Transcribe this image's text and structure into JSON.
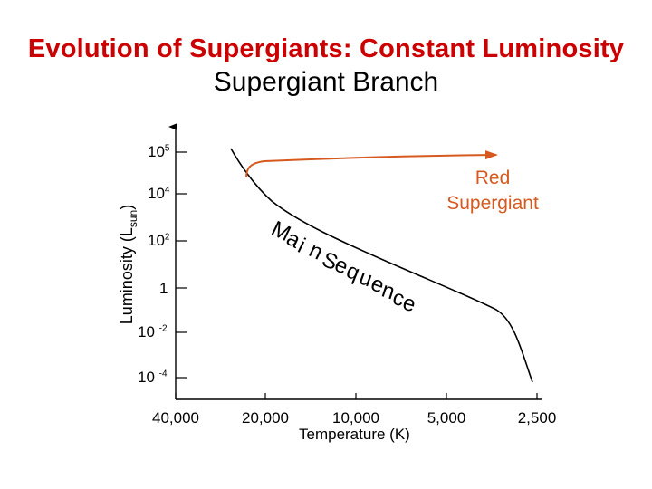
{
  "title": "Evolution of Supergiants: Constant Luminosity",
  "subtitle": "Supergiant Branch",
  "axes": {
    "y_label_main": "Luminosity (L",
    "y_label_sub": "sun",
    "y_label_close": ")",
    "x_label": "Temperature (K)",
    "y_ticks": [
      {
        "base": "10",
        "exp": "5"
      },
      {
        "base": "10",
        "exp": "4"
      },
      {
        "base": "10",
        "exp": "2"
      },
      {
        "base": "1",
        "exp": ""
      },
      {
        "base": "10 ",
        "exp": "-2"
      },
      {
        "base": "10 ",
        "exp": "-4"
      }
    ],
    "x_ticks": [
      "40,000",
      "20,000",
      "10,000",
      "5,000",
      "2,500"
    ]
  },
  "labels": {
    "main_sequence": "Main Sequence",
    "red_supergiant_line1": "Red",
    "red_supergiant_line2": "Supergiant"
  },
  "colors": {
    "title": "#cc0000",
    "track": "#d65a1f",
    "axes": "#000000"
  }
}
